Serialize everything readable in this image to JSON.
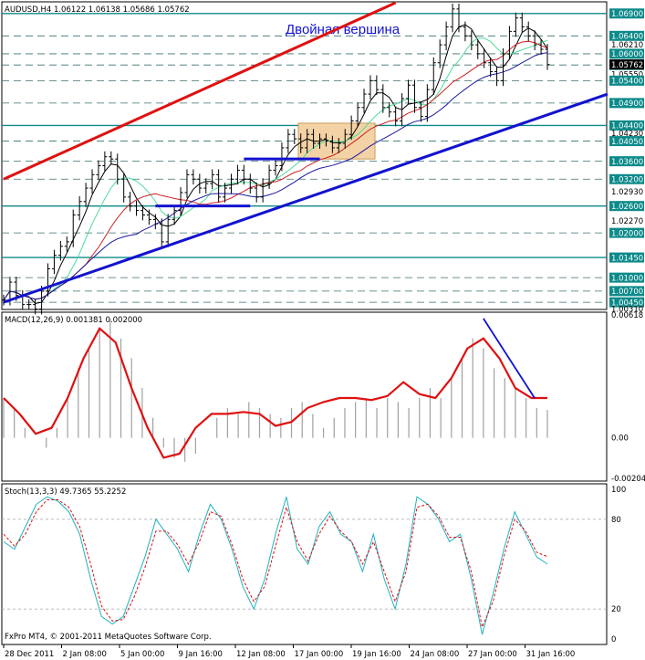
{
  "chart_data": [
    {
      "type": "line",
      "title": "AUDUSD,H4  1.06122 1.06138 1.05686 1.05762",
      "annotation": "Двойная вершина",
      "ylim": [
        1.0031,
        1.0714
      ],
      "price_labels": [
        "1.06900",
        "1.06400",
        "1.06210",
        "1.06000",
        "1.05750",
        "1.05550",
        "1.05400",
        "1.04900",
        "1.04400",
        "1.04230",
        "1.04050",
        "1.03600",
        "1.03200",
        "1.02930",
        "1.02600",
        "1.02270",
        "1.02000",
        "1.01450",
        "1.01000",
        "1.00700",
        "1.00450",
        "1.00310"
      ],
      "current_price": 1.05762,
      "resistance_levels": [
        1.069,
        1.064,
        1.06,
        1.0575,
        1.054,
        1.049,
        1.044,
        1.0405,
        1.036,
        1.032,
        1.026,
        1.02,
        1.0145,
        1.01,
        1.007,
        1.0045
      ],
      "close_series": [
        1.005,
        1.009,
        1.006,
        1.004,
        1.004,
        1.003,
        1.007,
        1.012,
        1.015,
        1.017,
        1.018,
        1.024,
        1.027,
        1.03,
        1.033,
        1.035,
        1.037,
        1.0365,
        1.032,
        1.028,
        1.026,
        1.025,
        1.024,
        1.023,
        1.022,
        1.018,
        1.023,
        1.025,
        1.029,
        1.033,
        1.032,
        1.03,
        1.031,
        1.033,
        1.028,
        1.03,
        1.032,
        1.034,
        1.032,
        1.03,
        1.028,
        1.031,
        1.034,
        1.035,
        1.039,
        1.042,
        1.041,
        1.039,
        1.042,
        1.04,
        1.041,
        1.0405,
        1.039,
        1.04,
        1.042,
        1.045,
        1.048,
        1.051,
        1.054,
        1.052,
        1.048,
        1.047,
        1.045,
        1.05,
        1.053,
        1.048,
        1.046,
        1.052,
        1.058,
        1.062,
        1.066,
        1.07,
        1.066,
        1.064,
        1.062,
        1.06,
        1.058,
        1.056,
        1.054,
        1.06,
        1.065,
        1.068,
        1.066,
        1.064,
        1.062,
        1.061,
        1.0576
      ],
      "x_labels": [
        "28 Dec 2011",
        "2 Jan 08:00",
        "5 Jan 00:00",
        "9 Jan 16:00",
        "12 Jan 08:00",
        "17 Jan 00:00",
        "19 Jan 16:00",
        "24 Jan 08:00",
        "27 Jan 00:00",
        "31 Jan 16:00"
      ],
      "grid": false
    },
    {
      "type": "line",
      "title": "MACD(12,26,9) 0.001381 0.002000",
      "ylim": [
        -0.00204,
        0.00618
      ],
      "y_labels": [
        "0.00618",
        "0.00",
        "-0.00204"
      ],
      "histogram": [
        0.002,
        0.0015,
        0.0005,
        0.0,
        -0.0005,
        0.0005,
        0.002,
        0.0035,
        0.0045,
        0.0055,
        0.006,
        0.005,
        0.004,
        0.0025,
        0.001,
        -0.0005,
        -0.001,
        -0.0012,
        -0.0008,
        0.0,
        0.001,
        0.0015,
        0.0012,
        0.0018,
        0.0015,
        0.0012,
        0.001,
        0.0015,
        0.0018,
        0.0012,
        0.0005,
        0.001,
        0.0015,
        0.0018,
        0.002,
        0.0015,
        0.002,
        0.0018,
        0.0015,
        0.002,
        0.0025,
        0.002,
        0.003,
        0.004,
        0.005,
        0.0045,
        0.0035,
        0.003,
        0.0025,
        0.002,
        0.0015,
        0.0014
      ],
      "signal": [
        0.002,
        0.0012,
        0.0002,
        0.0005,
        0.002,
        0.004,
        0.0055,
        0.0048,
        0.0025,
        0.0005,
        -0.001,
        -0.0008,
        0.0005,
        0.0012,
        0.0012,
        0.0013,
        0.0012,
        0.0006,
        0.0008,
        0.0015,
        0.0018,
        0.002,
        0.002,
        0.0019,
        0.0021,
        0.0028,
        0.0022,
        0.002,
        0.003,
        0.0045,
        0.005,
        0.004,
        0.0025,
        0.002,
        0.002
      ],
      "grid": false
    },
    {
      "type": "line",
      "title": "Stoch(13,3,3) 49.7365 55.2252",
      "ylim": [
        0,
        100
      ],
      "y_labels": [
        "100",
        "80",
        "20",
        "0"
      ],
      "main": [
        65,
        60,
        75,
        90,
        95,
        92,
        85,
        70,
        40,
        15,
        10,
        15,
        35,
        55,
        80,
        70,
        60,
        45,
        70,
        90,
        80,
        60,
        35,
        20,
        40,
        70,
        95,
        60,
        50,
        75,
        85,
        70,
        65,
        45,
        70,
        40,
        20,
        50,
        95,
        90,
        80,
        65,
        70,
        40,
        3,
        30,
        60,
        85,
        70,
        55,
        50
      ],
      "signal": [
        70,
        62,
        70,
        85,
        93,
        93,
        88,
        75,
        50,
        22,
        12,
        13,
        28,
        48,
        72,
        72,
        63,
        50,
        65,
        85,
        82,
        63,
        40,
        25,
        35,
        62,
        88,
        65,
        52,
        70,
        82,
        72,
        65,
        50,
        65,
        45,
        25,
        45,
        88,
        90,
        82,
        68,
        68,
        45,
        8,
        25,
        55,
        80,
        72,
        58,
        55
      ],
      "grid": false
    }
  ],
  "footer": "FxPro MT4, © 2001-2011 MetaQuotes Software Corp."
}
